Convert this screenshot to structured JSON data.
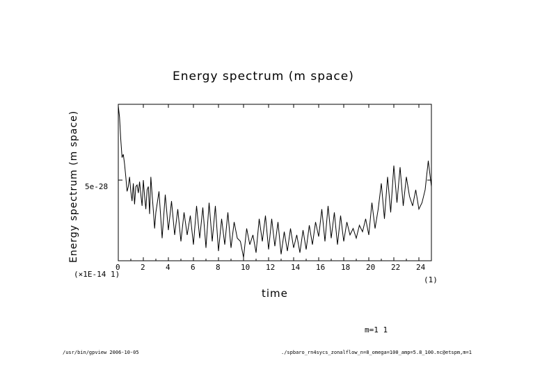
{
  "chart_data": {
    "type": "line",
    "title": "Energy spectrum (m space)",
    "xlabel": "time",
    "ylabel": "Energy spectrum (m space)",
    "xlim": [
      0,
      25
    ],
    "ylim": [
      0,
      9.7e-28
    ],
    "x_ticks": [
      0,
      2,
      4,
      6,
      8,
      10,
      12,
      14,
      16,
      18,
      20,
      22,
      24
    ],
    "x_tick_labels": [
      "0",
      "2",
      "4",
      "6",
      "8",
      "10",
      "12",
      "14",
      "16",
      "18",
      "20",
      "22",
      "24"
    ],
    "y_tick_value": 5e-28,
    "y_tick_label": "5e-28",
    "x_scale_note": "(×1E-14 1)",
    "x_unit_note": "(1)",
    "series": [
      {
        "name": "m=1 1",
        "x": [
          0,
          0.1,
          0.2,
          0.3,
          0.4,
          0.5,
          0.6,
          0.7,
          0.8,
          0.9,
          1.0,
          1.1,
          1.2,
          1.3,
          1.4,
          1.5,
          1.6,
          1.7,
          1.8,
          1.9,
          2.0,
          2.1,
          2.2,
          2.3,
          2.4,
          2.5,
          2.6,
          2.7,
          2.8,
          2.9,
          3.0,
          3.25,
          3.5,
          3.75,
          4.0,
          4.25,
          4.5,
          4.75,
          5.0,
          5.25,
          5.5,
          5.75,
          6.0,
          6.25,
          6.5,
          6.75,
          7.0,
          7.25,
          7.5,
          7.75,
          8.0,
          8.25,
          8.5,
          8.75,
          9.0,
          9.25,
          9.5,
          9.75,
          10.0,
          10.25,
          10.5,
          10.75,
          11.0,
          11.25,
          11.5,
          11.75,
          12.0,
          12.25,
          12.5,
          12.75,
          13.0,
          13.25,
          13.5,
          13.75,
          14.0,
          14.25,
          14.5,
          14.75,
          15.0,
          15.25,
          15.5,
          15.75,
          16.0,
          16.25,
          16.5,
          16.75,
          17.0,
          17.25,
          17.5,
          17.75,
          18.0,
          18.25,
          18.5,
          18.75,
          19.0,
          19.25,
          19.5,
          19.75,
          20.0,
          20.25,
          20.5,
          20.75,
          21.0,
          21.25,
          21.5,
          21.75,
          22.0,
          22.25,
          22.5,
          22.75,
          23.0,
          23.25,
          23.5,
          23.75,
          24.0,
          24.25,
          24.5,
          24.75,
          25.0
        ],
        "values": [
          9.6e-28,
          8.9e-28,
          7.5e-28,
          6.4e-28,
          6.6e-28,
          6e-28,
          5.2e-28,
          4.3e-28,
          4.6e-28,
          5.2e-28,
          4.3e-28,
          3.7e-28,
          4.8e-28,
          3.5e-28,
          4.6e-28,
          4.7e-28,
          4.2e-28,
          4.9e-28,
          4.1e-28,
          3.4e-28,
          5e-28,
          4e-28,
          3.2e-28,
          4.4e-28,
          4.6e-28,
          2.9e-28,
          5.2e-28,
          4.1e-28,
          3.1e-28,
          2e-28,
          3e-28,
          4.3e-28,
          1.4e-28,
          4.1e-28,
          1.9e-28,
          3.7e-28,
          1.6e-28,
          3.2e-28,
          1.2e-28,
          3e-28,
          1.6e-28,
          2.8e-28,
          1e-28,
          3.4e-28,
          1.4e-28,
          3.3e-28,
          8e-29,
          3.6e-28,
          1.2e-28,
          3.4e-28,
          6e-29,
          2.6e-28,
          1e-28,
          3e-28,
          8e-29,
          2.4e-28,
          1.4e-28,
          1.2e-28,
          2e-29,
          2e-28,
          1e-28,
          1.6e-28,
          5e-29,
          2.6e-28,
          1.2e-28,
          2.8e-28,
          7e-29,
          2.6e-28,
          9e-29,
          2.4e-28,
          4e-29,
          1.8e-28,
          6e-29,
          2e-28,
          8e-29,
          1.6e-28,
          5e-29,
          1.9e-28,
          7e-29,
          2.2e-28,
          1e-28,
          2.4e-28,
          1.5e-28,
          3.2e-28,
          1.2e-28,
          3.4e-28,
          1.4e-28,
          3e-28,
          1e-28,
          2.8e-28,
          1.2e-28,
          2.4e-28,
          1.6e-28,
          2e-28,
          1.4e-28,
          2.2e-28,
          1.8e-28,
          2.6e-28,
          1.6e-28,
          3.6e-28,
          2e-28,
          3.2e-28,
          4.8e-28,
          2.6e-28,
          5.2e-28,
          3e-28,
          5.9e-28,
          3.6e-28,
          5.8e-28,
          3.4e-28,
          5.2e-28,
          4e-28,
          3.4e-28,
          4.4e-28,
          3.2e-28,
          3.6e-28,
          4.4e-28,
          6.2e-28,
          4.6e-28
        ]
      }
    ]
  },
  "legend_text": "m=1 1",
  "footer_left": "/usr/bin/gpview  2006-10-05",
  "footer_right": "./spbaro_rn4sycs_zonalflow_n=8_omega=100_amp=5.8_100.nc@etspm,m=1"
}
